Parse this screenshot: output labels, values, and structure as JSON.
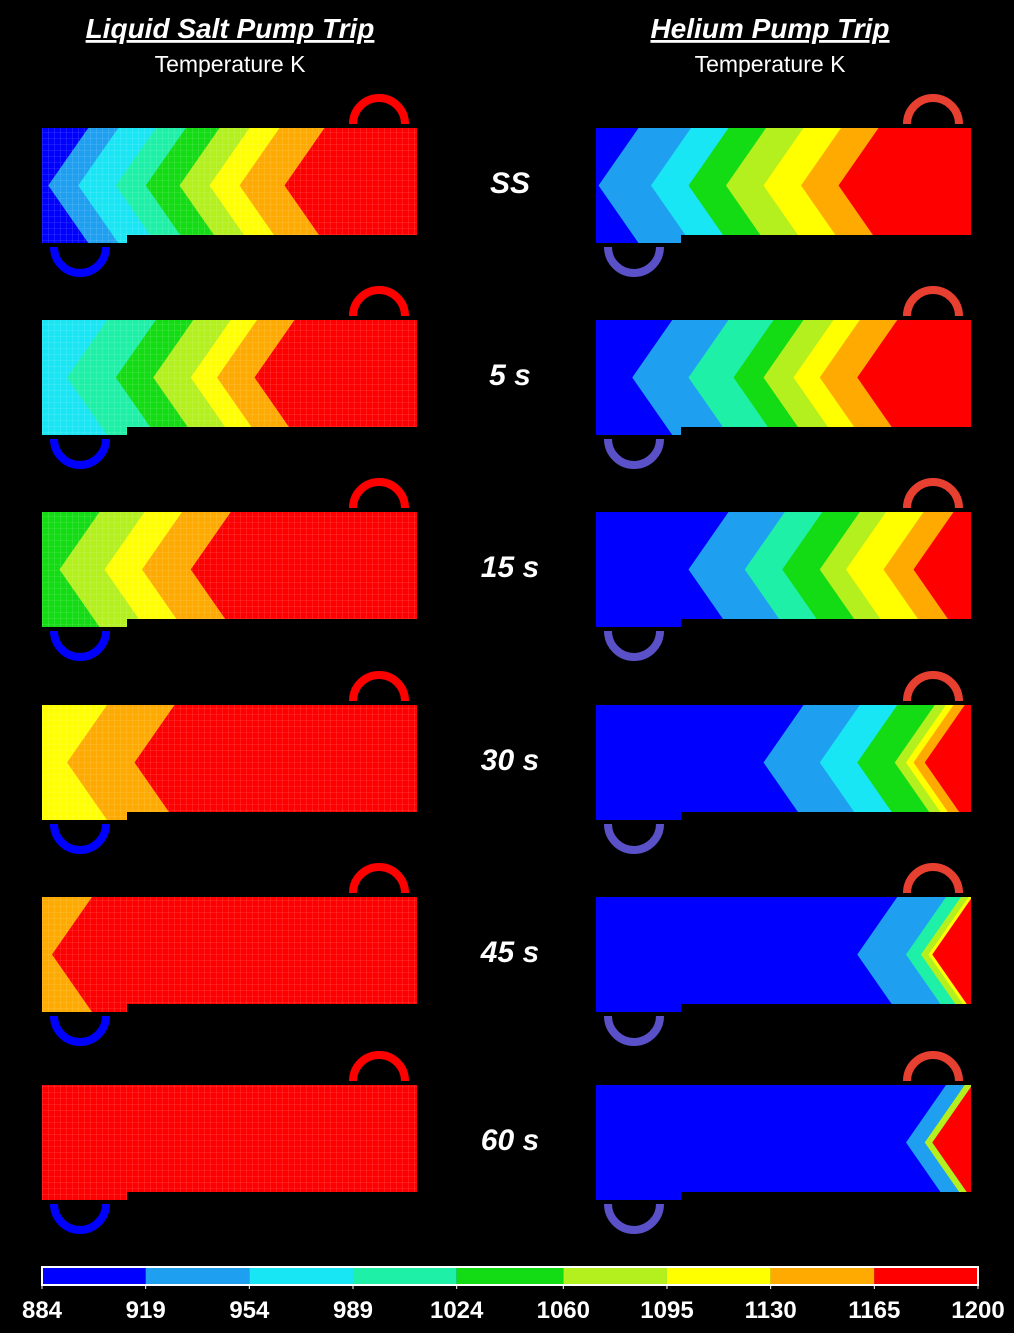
{
  "left_panel": {
    "title": "Liquid Salt Pump Trip",
    "subtitle": "Temperature K"
  },
  "right_panel": {
    "title": "Helium Pump Trip",
    "subtitle": "Temperature K"
  },
  "time_labels": [
    "SS",
    "5 s",
    "15 s",
    "30 s",
    "45 s",
    "60 s"
  ],
  "colorbar": {
    "ticks": [
      884,
      919,
      954,
      989,
      1024,
      1060,
      1095,
      1130,
      1165,
      1200
    ],
    "colors": [
      "#0000ff",
      "#1e9ff0",
      "#19e6f5",
      "#1ef0a8",
      "#14dc14",
      "#b4f01e",
      "#ffff00",
      "#ffaa00",
      "#ff0000"
    ]
  }
}
